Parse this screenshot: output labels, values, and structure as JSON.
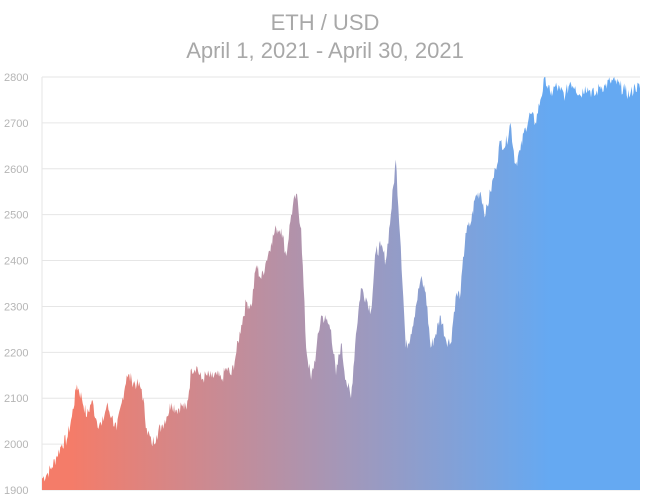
{
  "chart_data": {
    "type": "area",
    "title": "ETH / USD",
    "subtitle": "April 1, 2021 - April 30, 2021",
    "xlabel": "",
    "ylabel": "",
    "ylim": [
      1900,
      2800
    ],
    "yticks": [
      1900,
      2000,
      2100,
      2200,
      2300,
      2400,
      2500,
      2600,
      2700,
      2800
    ],
    "grid": true,
    "legend": "none",
    "gradient_colors": [
      "#f47c69",
      "#a497b8",
      "#65a9f2"
    ],
    "x": [
      0,
      0.25,
      0.5,
      0.75,
      1,
      1.25,
      1.5,
      1.75,
      2,
      2.25,
      2.5,
      2.75,
      3,
      3.25,
      3.5,
      3.75,
      4,
      4.25,
      4.5,
      4.75,
      5,
      5.25,
      5.5,
      5.75,
      6,
      6.25,
      6.5,
      6.75,
      7,
      7.25,
      7.5,
      7.75,
      8,
      8.25,
      8.5,
      8.75,
      9,
      9.25,
      9.5,
      9.75,
      10,
      10.25,
      10.5,
      10.75,
      11,
      11.25,
      11.5,
      11.75,
      12,
      12.25,
      12.5,
      12.75,
      13,
      13.25,
      13.5,
      13.75,
      14,
      14.25,
      14.5,
      14.75,
      15,
      15.25,
      15.5,
      15.75,
      16,
      16.25,
      16.5,
      16.75,
      17,
      17.25,
      17.5,
      17.75,
      18,
      18.25,
      18.5,
      18.75,
      19,
      19.25,
      19.5,
      19.75,
      20,
      20.25,
      20.5,
      20.75,
      21,
      21.25,
      21.5,
      21.75,
      22,
      22.25,
      22.5,
      22.75,
      23,
      23.25,
      23.5,
      23.75,
      24,
      24.25,
      24.5,
      24.75,
      25,
      25.25,
      25.5,
      25.75,
      26,
      26.25,
      26.5,
      26.75,
      27,
      27.25,
      27.5,
      27.75,
      28,
      28.25,
      28.5,
      28.75,
      29,
      29.25,
      29.5,
      29.75,
      30
    ],
    "values": [
      1925,
      1935,
      1950,
      1975,
      2000,
      2010,
      2060,
      2130,
      2100,
      2060,
      2095,
      2050,
      2040,
      2085,
      2060,
      2030,
      2090,
      2150,
      2140,
      2130,
      2120,
      2035,
      2000,
      2020,
      2040,
      2060,
      2090,
      2075,
      2085,
      2075,
      2165,
      2170,
      2140,
      2150,
      2145,
      2150,
      2140,
      2165,
      2150,
      2200,
      2260,
      2310,
      2300,
      2390,
      2360,
      2400,
      2440,
      2470,
      2470,
      2410,
      2500,
      2545,
      2470,
      2210,
      2140,
      2200,
      2280,
      2270,
      2250,
      2150,
      2220,
      2140,
      2100,
      2240,
      2340,
      2320,
      2290,
      2420,
      2430,
      2400,
      2500,
      2620,
      2430,
      2210,
      2240,
      2300,
      2360,
      2330,
      2210,
      2240,
      2280,
      2230,
      2220,
      2320,
      2330,
      2460,
      2480,
      2540,
      2550,
      2500,
      2550,
      2600,
      2660,
      2650,
      2700,
      2610,
      2640,
      2690,
      2720,
      2700,
      2750,
      2800,
      2760,
      2780,
      2770,
      2760,
      2790,
      2780,
      2760,
      2780,
      2770,
      2760,
      2780,
      2780,
      2790,
      2790,
      2780,
      2770,
      2760,
      2780,
      2775
    ]
  }
}
